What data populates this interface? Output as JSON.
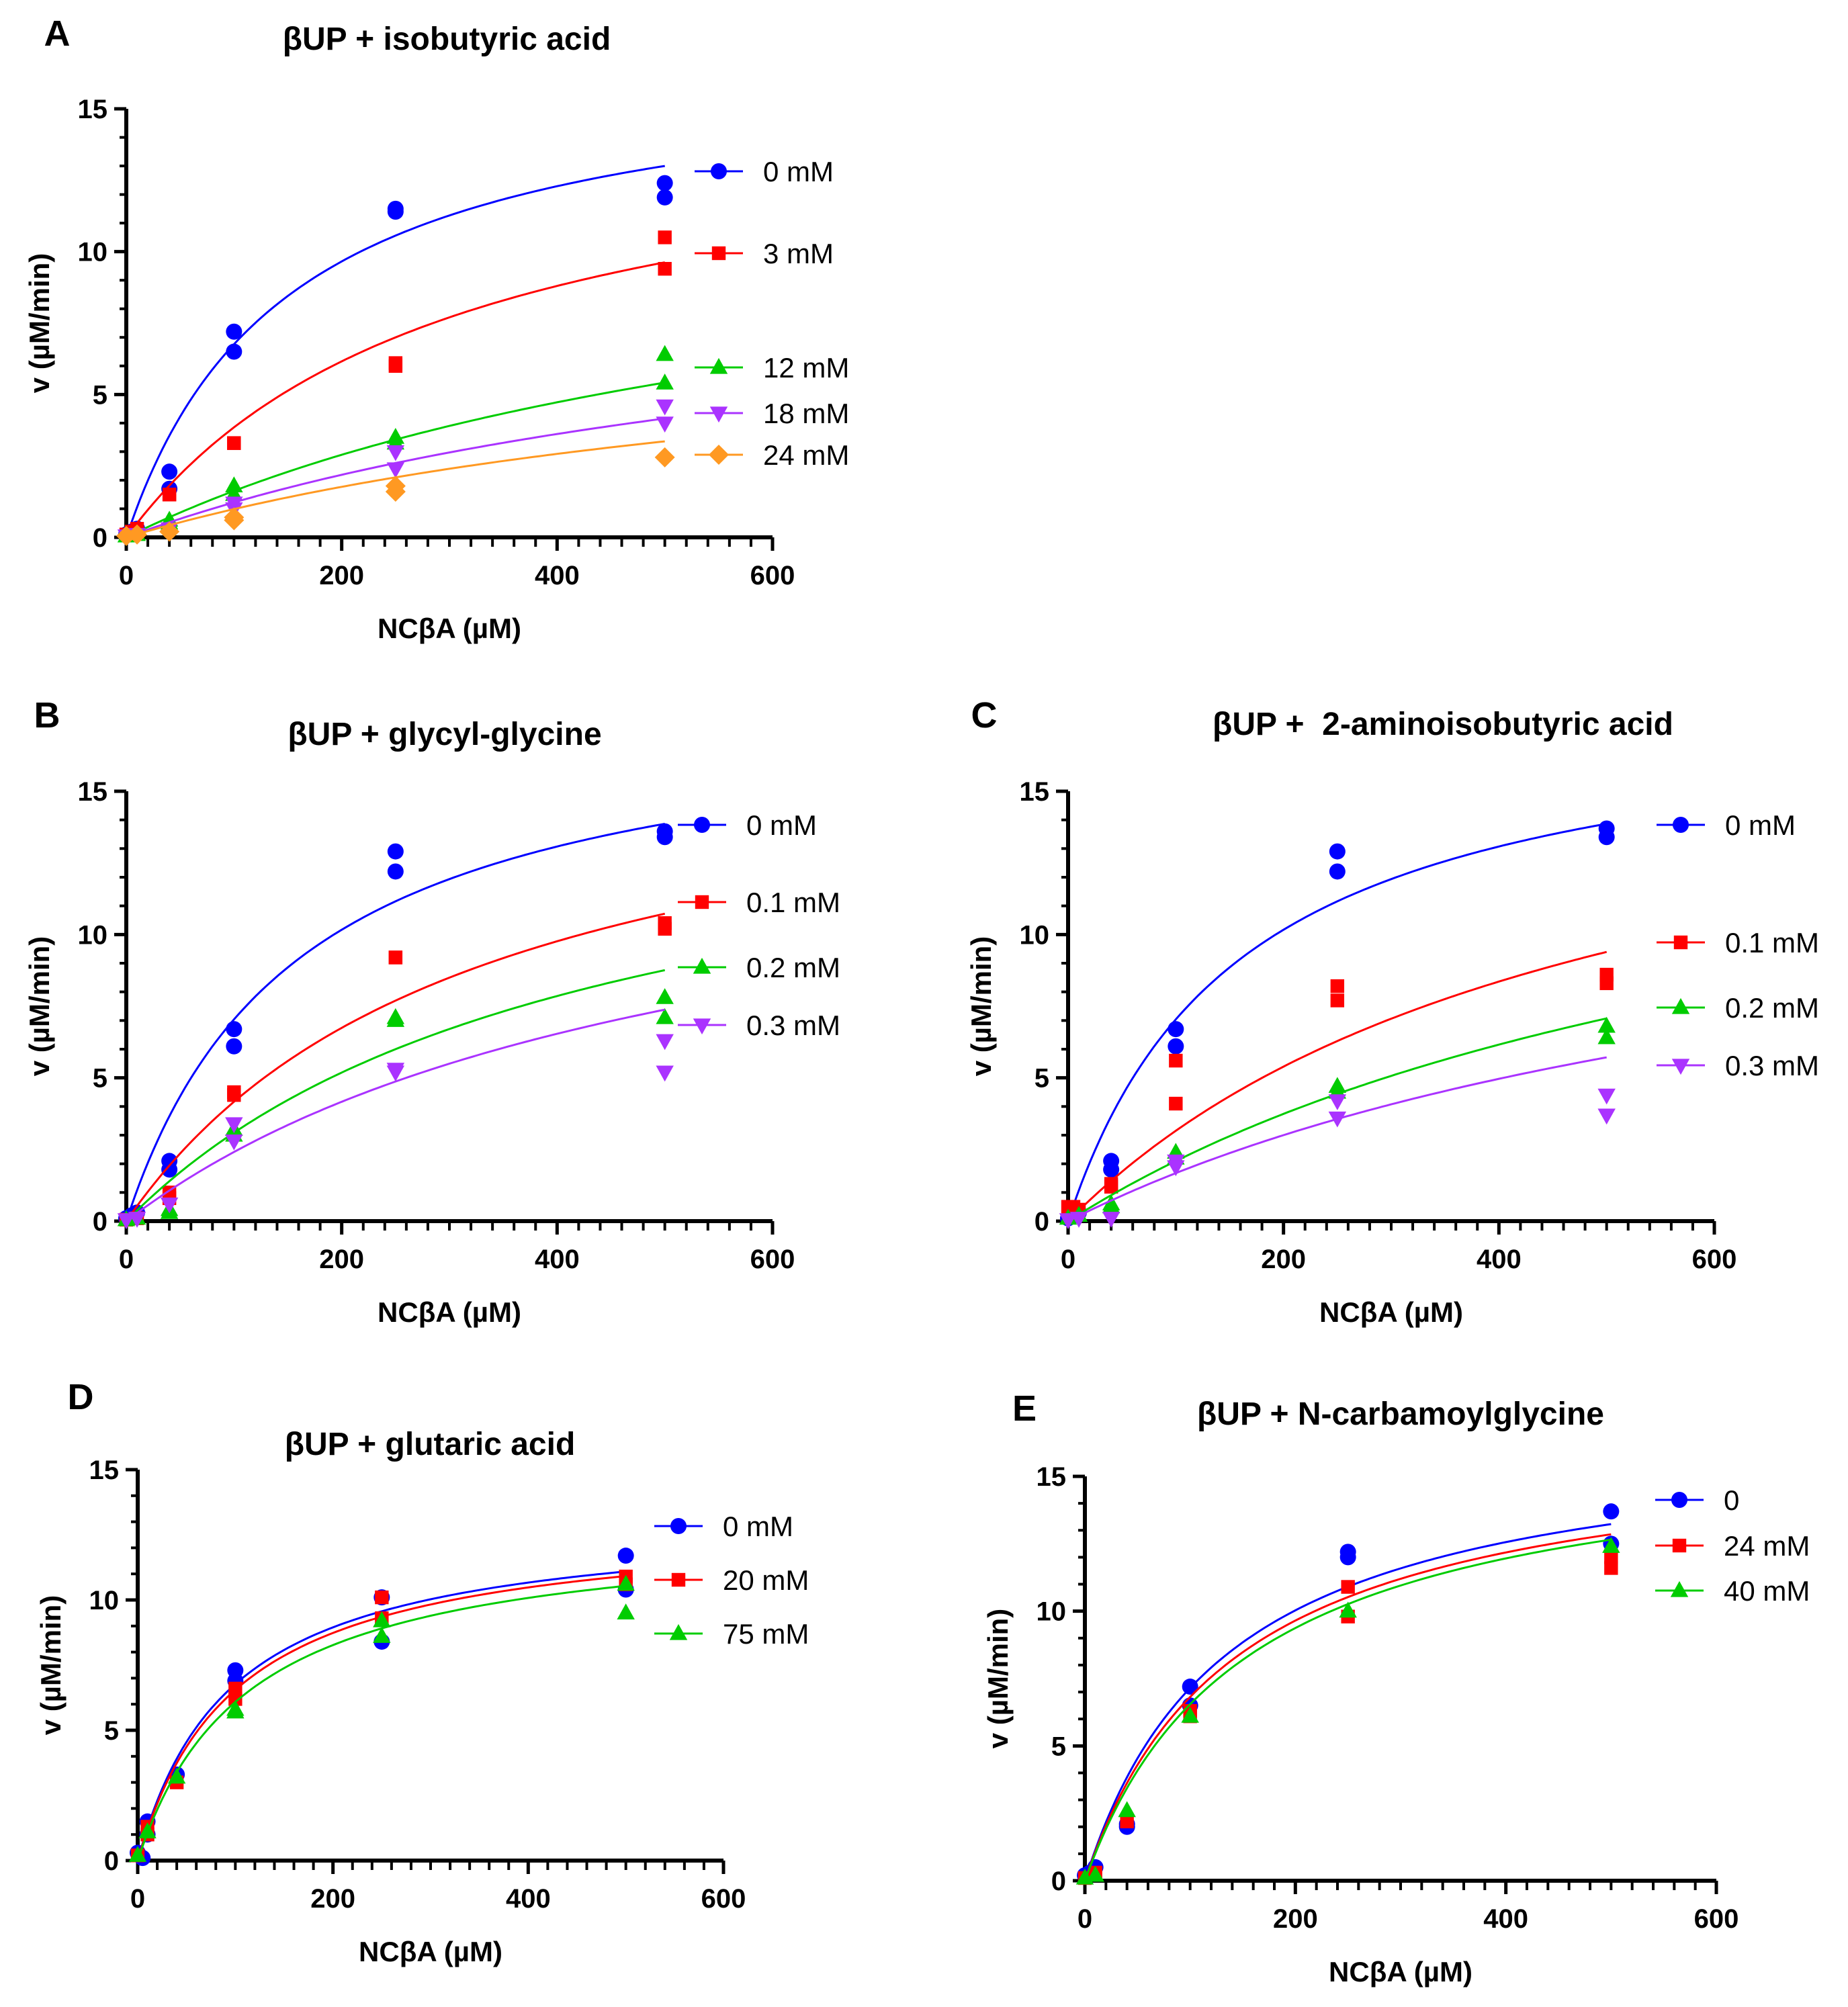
{
  "figure": {
    "background": "#ffffff"
  },
  "chart_data": [
    {
      "panel": "A",
      "type": "scatter",
      "title": "βUP + isobutyric acid",
      "xlabel": "NCβA (µM)",
      "ylabel": "v (µM/min)",
      "xlim": [
        0,
        600
      ],
      "ylim": [
        0,
        15
      ],
      "xticks": [
        "0",
        "200",
        "400",
        "600"
      ],
      "yticks": [
        "0",
        "5",
        "10",
        "15"
      ],
      "legend_position": "right",
      "series": [
        {
          "name": "0 mM",
          "color": "#0000ff",
          "marker": "circle",
          "points": [
            [
              0,
              0.1
            ],
            [
              5,
              0.2
            ],
            [
              10,
              0.3
            ],
            [
              40,
              2.3
            ],
            [
              40,
              1.7
            ],
            [
              100,
              7.2
            ],
            [
              100,
              6.5
            ],
            [
              250,
              11.5
            ],
            [
              250,
              11.4
            ],
            [
              500,
              12.4
            ],
            [
              500,
              11.9
            ]
          ],
          "fit": {
            "vmax": 16.9,
            "km": 150,
            "x_end": 500
          }
        },
        {
          "name": "3 mM",
          "color": "#ff0000",
          "marker": "square",
          "points": [
            [
              0,
              0.1
            ],
            [
              5,
              0.2
            ],
            [
              10,
              0.3
            ],
            [
              40,
              1.5
            ],
            [
              40,
              1.5
            ],
            [
              100,
              3.3
            ],
            [
              100,
              3.3
            ],
            [
              250,
              6.1
            ],
            [
              250,
              6.0
            ],
            [
              500,
              10.5
            ],
            [
              500,
              9.4
            ]
          ],
          "fit": {
            "vmax": 15.4,
            "km": 300,
            "x_end": 500
          }
        },
        {
          "name": "12 mM",
          "color": "#00cc00",
          "marker": "triangle-up",
          "points": [
            [
              0,
              0.05
            ],
            [
              10,
              0.1
            ],
            [
              40,
              0.6
            ],
            [
              40,
              0.5
            ],
            [
              100,
              1.8
            ],
            [
              100,
              1.5
            ],
            [
              250,
              3.5
            ],
            [
              250,
              3.3
            ],
            [
              500,
              6.4
            ],
            [
              500,
              5.4
            ]
          ],
          "fit": {
            "vmax": 13,
            "km": 700,
            "x_end": 500
          }
        },
        {
          "name": "18 mM",
          "color": "#aa33ff",
          "marker": "triangle-down",
          "points": [
            [
              0,
              0.05
            ],
            [
              10,
              0.1
            ],
            [
              40,
              0.3
            ],
            [
              100,
              1.2
            ],
            [
              100,
              1.0
            ],
            [
              250,
              3.0
            ],
            [
              250,
              2.4
            ],
            [
              500,
              4.6
            ],
            [
              500,
              4.0
            ]
          ],
          "fit": {
            "vmax": 10.4,
            "km": 750,
            "x_end": 500
          }
        },
        {
          "name": "24 mM",
          "color": "#ff9922",
          "marker": "diamond",
          "points": [
            [
              0,
              0.05
            ],
            [
              10,
              0.1
            ],
            [
              40,
              0.2
            ],
            [
              100,
              0.7
            ],
            [
              100,
              0.6
            ],
            [
              250,
              1.8
            ],
            [
              250,
              1.6
            ],
            [
              500,
              2.8
            ]
          ],
          "fit": {
            "vmax": 8.4,
            "km": 750,
            "x_end": 500
          }
        }
      ]
    },
    {
      "panel": "B",
      "type": "scatter",
      "title": "βUP + glycyl-glycine",
      "xlabel": "NCβA (µM)",
      "ylabel": "v (µM/min)",
      "xlim": [
        0,
        600
      ],
      "ylim": [
        0,
        15
      ],
      "xticks": [
        "0",
        "200",
        "400",
        "600"
      ],
      "yticks": [
        "0",
        "5",
        "10",
        "15"
      ],
      "legend_position": "right",
      "series": [
        {
          "name": "0 mM",
          "color": "#0000ff",
          "marker": "circle",
          "points": [
            [
              0,
              0.1
            ],
            [
              5,
              0.2
            ],
            [
              10,
              0.3
            ],
            [
              40,
              2.1
            ],
            [
              40,
              1.8
            ],
            [
              100,
              6.7
            ],
            [
              100,
              6.1
            ],
            [
              250,
              12.9
            ],
            [
              250,
              12.2
            ],
            [
              500,
              13.6
            ],
            [
              500,
              13.4
            ]
          ],
          "fit": {
            "vmax": 18.3,
            "km": 160,
            "x_end": 500
          }
        },
        {
          "name": "0.1 mM",
          "color": "#ff0000",
          "marker": "square",
          "points": [
            [
              0,
              0.05
            ],
            [
              10,
              0.1
            ],
            [
              40,
              1.0
            ],
            [
              40,
              0.8
            ],
            [
              100,
              4.5
            ],
            [
              100,
              4.4
            ],
            [
              250,
              9.2
            ],
            [
              250,
              9.2
            ],
            [
              500,
              10.4
            ],
            [
              500,
              10.2
            ]
          ],
          "fit": {
            "vmax": 17.7,
            "km": 325,
            "x_end": 500
          }
        },
        {
          "name": "0.2 mM",
          "color": "#00cc00",
          "marker": "triangle-up",
          "points": [
            [
              0,
              0.05
            ],
            [
              10,
              0.1
            ],
            [
              40,
              0.4
            ],
            [
              40,
              0.3
            ],
            [
              100,
              3.2
            ],
            [
              100,
              3.0
            ],
            [
              250,
              7.1
            ],
            [
              250,
              7.0
            ],
            [
              500,
              7.8
            ],
            [
              500,
              7.1
            ]
          ],
          "fit": {
            "vmax": 16.2,
            "km": 425,
            "x_end": 500
          }
        },
        {
          "name": "0.3 mM",
          "color": "#aa33ff",
          "marker": "triangle-down",
          "points": [
            [
              0,
              0.05
            ],
            [
              10,
              0.1
            ],
            [
              40,
              0.6
            ],
            [
              100,
              3.4
            ],
            [
              100,
              2.8
            ],
            [
              250,
              5.3
            ],
            [
              250,
              5.2
            ],
            [
              500,
              6.3
            ],
            [
              500,
              5.2
            ]
          ],
          "fit": {
            "vmax": 15.2,
            "km": 530,
            "x_end": 500
          }
        }
      ]
    },
    {
      "panel": "C",
      "type": "scatter",
      "title": "βUP +  2-aminoisobutyric acid",
      "xlabel": "NCβA (µM)",
      "ylabel": "v (µM/min)",
      "xlim": [
        0,
        600
      ],
      "ylim": [
        0,
        15
      ],
      "xticks": [
        "0",
        "200",
        "400",
        "600"
      ],
      "yticks": [
        "0",
        "5",
        "10",
        "15"
      ],
      "legend_position": "right",
      "series": [
        {
          "name": "0 mM",
          "color": "#0000ff",
          "marker": "circle",
          "points": [
            [
              0,
              0.1
            ],
            [
              5,
              0.2
            ],
            [
              10,
              0.3
            ],
            [
              40,
              2.1
            ],
            [
              40,
              1.8
            ],
            [
              100,
              6.7
            ],
            [
              100,
              6.1
            ],
            [
              250,
              12.9
            ],
            [
              250,
              12.2
            ],
            [
              500,
              13.7
            ],
            [
              500,
              13.4
            ]
          ],
          "fit": {
            "vmax": 18.3,
            "km": 160,
            "x_end": 500
          }
        },
        {
          "name": "0.1 mM",
          "color": "#ff0000",
          "marker": "square",
          "points": [
            [
              0,
              0.5
            ],
            [
              5,
              0.5
            ],
            [
              10,
              0.4
            ],
            [
              40,
              1.3
            ],
            [
              40,
              1.2
            ],
            [
              100,
              5.6
            ],
            [
              100,
              4.1
            ],
            [
              250,
              8.2
            ],
            [
              250,
              7.7
            ],
            [
              500,
              8.6
            ],
            [
              500,
              8.3
            ]
          ],
          "fit": {
            "vmax": 18.6,
            "km": 490,
            "x_end": 500
          }
        },
        {
          "name": "0.2 mM",
          "color": "#00cc00",
          "marker": "triangle-up",
          "points": [
            [
              0,
              0.1
            ],
            [
              10,
              0.2
            ],
            [
              40,
              0.6
            ],
            [
              40,
              0.5
            ],
            [
              100,
              2.4
            ],
            [
              100,
              2.2
            ],
            [
              250,
              4.7
            ],
            [
              250,
              4.5
            ],
            [
              500,
              6.8
            ],
            [
              500,
              6.4
            ]
          ],
          "fit": {
            "vmax": 17.4,
            "km": 730,
            "x_end": 500
          }
        },
        {
          "name": "0.3 mM",
          "color": "#aa33ff",
          "marker": "triangle-down",
          "points": [
            [
              0,
              0.05
            ],
            [
              10,
              0.1
            ],
            [
              40,
              0.1
            ],
            [
              100,
              2.1
            ],
            [
              100,
              1.9
            ],
            [
              250,
              4.2
            ],
            [
              250,
              3.6
            ],
            [
              500,
              4.4
            ],
            [
              500,
              3.7
            ]
          ],
          "fit": {
            "vmax": 14.4,
            "km": 760,
            "x_end": 500
          }
        }
      ]
    },
    {
      "panel": "D",
      "type": "scatter",
      "title": "βUP + glutaric acid",
      "xlabel": "NCβA (µM)",
      "ylabel": "v (µM/min)",
      "xlim": [
        0,
        600
      ],
      "ylim": [
        0,
        15
      ],
      "xticks": [
        "0",
        "200",
        "400",
        "600"
      ],
      "yticks": [
        "0",
        "5",
        "10",
        "15"
      ],
      "legend_position": "right",
      "series": [
        {
          "name": "0 mM",
          "color": "#0000ff",
          "marker": "circle",
          "points": [
            [
              0,
              0.3
            ],
            [
              5,
              0.1
            ],
            [
              10,
              1.5
            ],
            [
              10,
              1.0
            ],
            [
              40,
              3.3
            ],
            [
              100,
              7.3
            ],
            [
              100,
              6.9
            ],
            [
              250,
              10.1
            ],
            [
              250,
              8.4
            ],
            [
              500,
              11.7
            ],
            [
              500,
              10.4
            ]
          ],
          "fit": {
            "vmax": 13.2,
            "km": 95,
            "x_end": 500
          }
        },
        {
          "name": "20 mM",
          "color": "#ff0000",
          "marker": "square",
          "points": [
            [
              0,
              0.2
            ],
            [
              10,
              1.3
            ],
            [
              10,
              1.0
            ],
            [
              40,
              3.0
            ],
            [
              100,
              6.6
            ],
            [
              100,
              6.2
            ],
            [
              250,
              10.1
            ],
            [
              250,
              9.3
            ],
            [
              500,
              10.9
            ],
            [
              500,
              10.6
            ]
          ],
          "fit": {
            "vmax": 13.1,
            "km": 100,
            "x_end": 500
          }
        },
        {
          "name": "75 mM",
          "color": "#00cc00",
          "marker": "triangle-up",
          "points": [
            [
              0,
              0.2
            ],
            [
              10,
              1.1
            ],
            [
              40,
              3.2
            ],
            [
              100,
              5.8
            ],
            [
              100,
              5.7
            ],
            [
              250,
              9.2
            ],
            [
              250,
              8.6
            ],
            [
              500,
              9.5
            ],
            [
              500,
              10.6
            ]
          ],
          "fit": {
            "vmax": 12.9,
            "km": 112,
            "x_end": 500
          }
        }
      ]
    },
    {
      "panel": "E",
      "type": "scatter",
      "title": "βUP + N-carbamoylglycine",
      "xlabel": "NCβA (µM)",
      "ylabel": "v (µM/min)",
      "xlim": [
        0,
        600
      ],
      "ylim": [
        0,
        15
      ],
      "xticks": [
        "0",
        "200",
        "400",
        "600"
      ],
      "yticks": [
        "0",
        "5",
        "10",
        "15"
      ],
      "legend_position": "right",
      "series": [
        {
          "name": "0",
          "color": "#0000ff",
          "marker": "circle",
          "points": [
            [
              0,
              0.2
            ],
            [
              5,
              0.3
            ],
            [
              10,
              0.5
            ],
            [
              40,
              2.0
            ],
            [
              40,
              2.1
            ],
            [
              100,
              7.2
            ],
            [
              100,
              6.5
            ],
            [
              250,
              12.2
            ],
            [
              250,
              12.0
            ],
            [
              500,
              13.7
            ],
            [
              500,
              12.5
            ]
          ],
          "fit": {
            "vmax": 16.8,
            "km": 135,
            "x_end": 500
          }
        },
        {
          "name": "24 mM",
          "color": "#ff0000",
          "marker": "square",
          "points": [
            [
              0,
              0.1
            ],
            [
              10,
              0.3
            ],
            [
              40,
              2.2
            ],
            [
              100,
              6.3
            ],
            [
              100,
              6.1
            ],
            [
              250,
              10.9
            ],
            [
              250,
              9.8
            ],
            [
              500,
              12.0
            ],
            [
              500,
              11.6
            ]
          ],
          "fit": {
            "vmax": 16.5,
            "km": 142,
            "x_end": 500
          }
        },
        {
          "name": "40 mM",
          "color": "#00cc00",
          "marker": "triangle-up",
          "points": [
            [
              0,
              0.1
            ],
            [
              10,
              0.2
            ],
            [
              40,
              2.6
            ],
            [
              100,
              6.1
            ],
            [
              250,
              10.0
            ],
            [
              500,
              12.4
            ]
          ],
          "fit": {
            "vmax": 16.5,
            "km": 152,
            "x_end": 500
          }
        }
      ]
    }
  ]
}
